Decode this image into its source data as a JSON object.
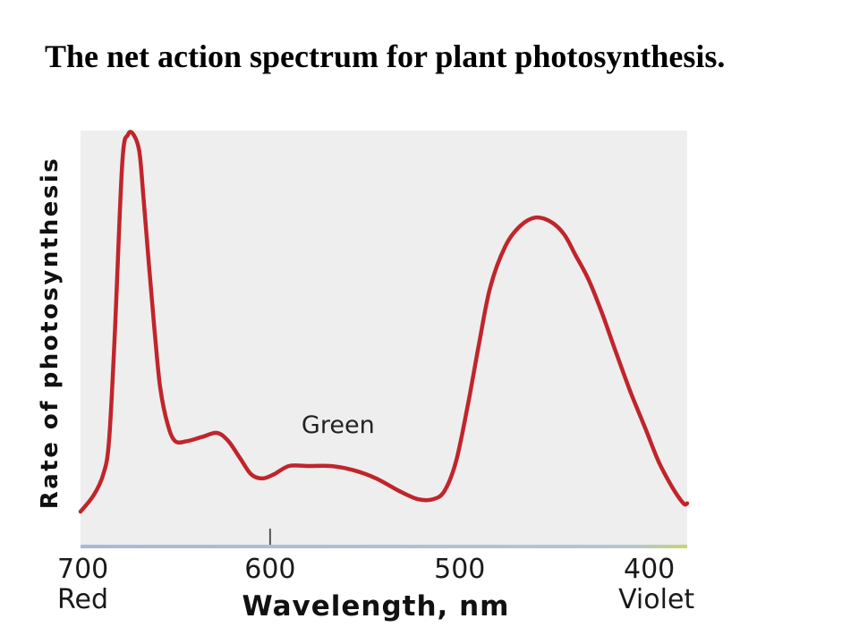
{
  "slide": {
    "title": "The net action spectrum for plant photosynthesis."
  },
  "chart_data": {
    "type": "line",
    "title": "The net action spectrum for plant photosynthesis.",
    "xlabel": "Wavelength, nm",
    "ylabel": "Rate of photosynthesis",
    "xlim": [
      700,
      380
    ],
    "ylim": [
      0,
      100
    ],
    "x_reversed": true,
    "grid": false,
    "y_ticks_shown": false,
    "x_ticks": [
      {
        "value": 700,
        "label": "700",
        "sublabel": "Red"
      },
      {
        "value": 600,
        "label": "600",
        "sublabel": ""
      },
      {
        "value": 500,
        "label": "500",
        "sublabel": ""
      },
      {
        "value": 400,
        "label": "400",
        "sublabel": "Violet"
      }
    ],
    "annotations": [
      {
        "text": "Green",
        "x": 550,
        "y": 27
      }
    ],
    "colors": {
      "line": "#c0252b",
      "plot_background": "#eeeeee",
      "axis_line": "#a9b8d6",
      "axis_line_end": "#c8d66a"
    },
    "series": [
      {
        "x": [
          700,
          693,
          688,
          685,
          682,
          678,
          675,
          672,
          669,
          667,
          664,
          661,
          658,
          654,
          650,
          644,
          636,
          628,
          622,
          616,
          610,
          604,
          598,
          590,
          580,
          568,
          556,
          544,
          532,
          522,
          514,
          508,
          502,
          496,
          490,
          484,
          476,
          468,
          460,
          452,
          445,
          439,
          432,
          425,
          418,
          410,
          402,
          395,
          388,
          382,
          380
        ],
        "y": [
          8,
          12,
          17,
          25,
          50,
          92,
          99,
          99,
          95,
          85,
          68,
          52,
          38,
          29,
          25,
          25,
          26,
          27,
          25,
          21,
          17,
          16,
          17,
          19,
          19,
          19,
          18,
          16,
          13,
          11,
          11,
          13,
          20,
          33,
          48,
          62,
          72,
          77,
          79,
          78,
          75,
          70,
          64,
          56,
          47,
          37,
          28,
          20,
          14,
          10,
          10
        ]
      }
    ]
  }
}
